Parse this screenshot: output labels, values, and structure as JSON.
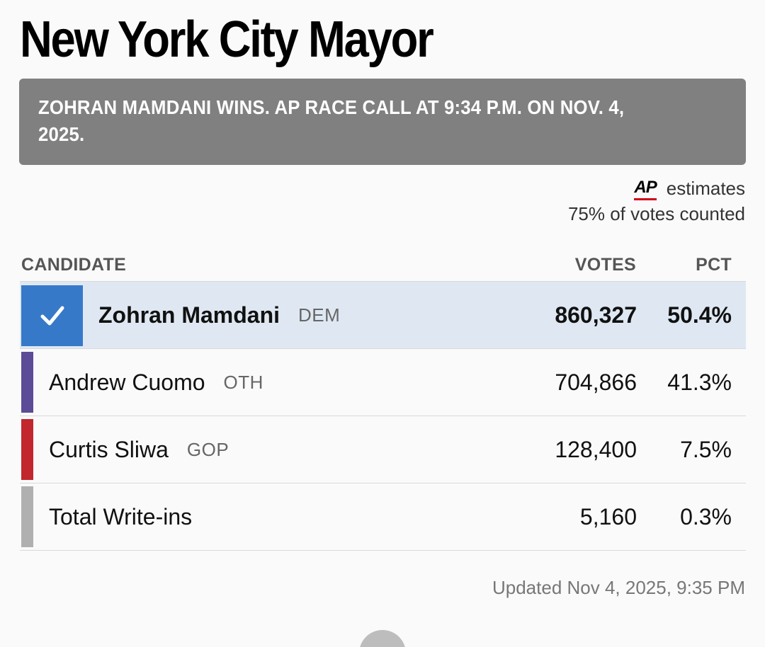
{
  "race": {
    "title": "New York City Mayor",
    "call_banner": "ZOHRAN MAMDANI WINS. AP RACE CALL AT 9:34 P.M. ON NOV. 4, 2025."
  },
  "source": {
    "logo_text": "AP",
    "estimates_label": "estimates",
    "counted": "75% of votes counted"
  },
  "table": {
    "headers": {
      "candidate": "CANDIDATE",
      "votes": "VOTES",
      "pct": "PCT"
    },
    "rows": [
      {
        "name": "Zohran Mamdani",
        "party": "DEM",
        "votes": "860,327",
        "pct": "50.4%",
        "winner": true,
        "color": "#3779c9"
      },
      {
        "name": "Andrew Cuomo",
        "party": "OTH",
        "votes": "704,866",
        "pct": "41.3%",
        "winner": false,
        "color": "#5c4b96"
      },
      {
        "name": "Curtis Sliwa",
        "party": "GOP",
        "votes": "128,400",
        "pct": "7.5%",
        "winner": false,
        "color": "#c1272d"
      },
      {
        "name": "Total Write-ins",
        "party": "",
        "votes": "5,160",
        "pct": "0.3%",
        "winner": false,
        "color": "#b0b0b0"
      }
    ]
  },
  "updated": "Updated Nov 4, 2025, 9:35 PM",
  "icons": {
    "winner_check": "checkmark-icon"
  }
}
